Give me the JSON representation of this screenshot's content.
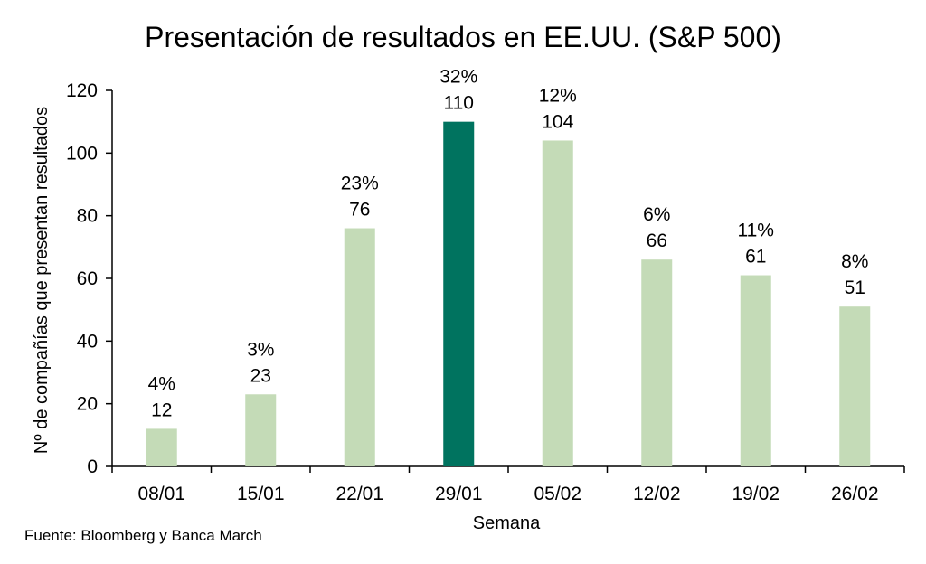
{
  "chart_data": {
    "type": "bar",
    "title": "Presentación de resultados en EE.UU. (S&P 500)",
    "xlabel": "Semana",
    "ylabel": "Nº de compañías que presentan resultados",
    "ylim": [
      0,
      120
    ],
    "yticks": [
      0,
      20,
      40,
      60,
      80,
      100,
      120
    ],
    "grid": false,
    "categories": [
      "08/01",
      "15/01",
      "22/01",
      "29/01",
      "05/02",
      "12/02",
      "19/02",
      "26/02"
    ],
    "values": [
      12,
      23,
      76,
      110,
      104,
      66,
      61,
      51
    ],
    "percent_labels": [
      "4%",
      "3%",
      "23%",
      "32%",
      "12%",
      "6%",
      "11%",
      "8%"
    ],
    "highlight_index": 3,
    "colors": {
      "bar": "#c4dbb7",
      "highlight": "#00735f",
      "axis": "#000000"
    }
  },
  "source": "Fuente: Bloomberg y Banca March"
}
